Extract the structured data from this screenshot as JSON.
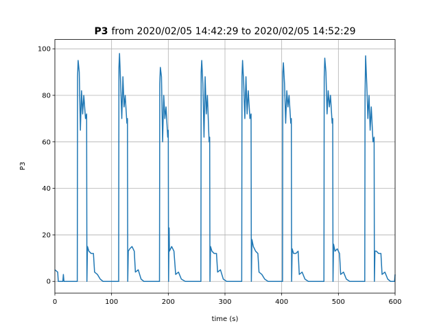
{
  "chart_data": {
    "type": "line",
    "title_bold": "P3",
    "title": "from 2020/02/05 14:42:29 to 2020/02/05 14:52:29",
    "x_label": "time (s)",
    "y_label": "P3",
    "xlim": [
      0,
      600
    ],
    "ylim": [
      -5,
      104
    ],
    "xticks": [
      0,
      100,
      200,
      300,
      400,
      500,
      600
    ],
    "yticks": [
      0,
      20,
      40,
      60,
      80,
      100
    ],
    "grid": true,
    "series": [
      {
        "color": "#1f77b4",
        "x": [
          0,
          5,
          6,
          14,
          15,
          16,
          39.5,
          40,
          41,
          43,
          45,
          47,
          49,
          51,
          54,
          56,
          56.5,
          57.5,
          60,
          64,
          68,
          70,
          75,
          80,
          85,
          112.5,
          113,
          114,
          116,
          118,
          120,
          122,
          124,
          127,
          128,
          128.5,
          129.5,
          132,
          136,
          140,
          142,
          147,
          152,
          157,
          184.5,
          185,
          186,
          188,
          190,
          192,
          194,
          196,
          199,
          200,
          200.5,
          201.5,
          202,
          206,
          210,
          213,
          218,
          223,
          230,
          257.5,
          258,
          259,
          261,
          263,
          265,
          267,
          269,
          272,
          273,
          273.5,
          274.5,
          277,
          281,
          285,
          287,
          292,
          297,
          303,
          329.5,
          330,
          331,
          333,
          335,
          337,
          339,
          341,
          344,
          346,
          346.5,
          347.5,
          350,
          354,
          358,
          360,
          365,
          370,
          376,
          401.5,
          402,
          403,
          405,
          407,
          409,
          411,
          413,
          416,
          417,
          417.5,
          418.5,
          421,
          425,
          429,
          431,
          436,
          441,
          447,
          474.5,
          475,
          476,
          478,
          480,
          482,
          484,
          486,
          489,
          490,
          490.5,
          491.5,
          494,
          498,
          502,
          504,
          509,
          514,
          520,
          546.5,
          547,
          548,
          550,
          552,
          554,
          556,
          558,
          561,
          563,
          563.5,
          564.5,
          567,
          571,
          575,
          577,
          582,
          587,
          592,
          599,
          600
        ],
        "values": [
          5,
          4,
          0,
          0,
          3,
          0,
          0,
          88,
          95,
          90,
          65,
          82,
          72,
          80,
          70,
          72,
          0,
          15,
          13,
          12,
          12,
          4,
          3,
          1,
          0,
          0,
          92,
          98,
          85,
          70,
          88,
          75,
          80,
          68,
          70,
          0,
          13,
          14,
          15,
          13,
          4,
          5,
          1,
          0,
          0,
          85,
          92,
          88,
          60,
          80,
          70,
          75,
          62,
          65,
          0,
          23,
          13,
          15,
          13,
          3,
          4,
          1,
          0,
          0,
          90,
          95,
          85,
          62,
          88,
          72,
          80,
          60,
          62,
          0,
          15,
          13,
          12,
          12,
          4,
          5,
          1,
          0,
          0,
          88,
          95,
          85,
          70,
          88,
          72,
          82,
          70,
          72,
          0,
          18,
          15,
          13,
          12,
          4,
          3,
          1,
          0,
          0,
          90,
          94,
          85,
          68,
          82,
          75,
          80,
          68,
          70,
          0,
          14,
          12,
          12,
          13,
          3,
          4,
          1,
          0,
          0,
          88,
          96,
          90,
          72,
          82,
          75,
          80,
          68,
          70,
          0,
          16,
          13,
          14,
          12,
          3,
          4,
          1,
          0,
          0,
          80,
          97,
          85,
          70,
          80,
          65,
          75,
          60,
          62,
          0,
          13,
          13,
          12,
          12,
          3,
          4,
          1,
          0,
          0,
          3
        ]
      }
    ]
  }
}
